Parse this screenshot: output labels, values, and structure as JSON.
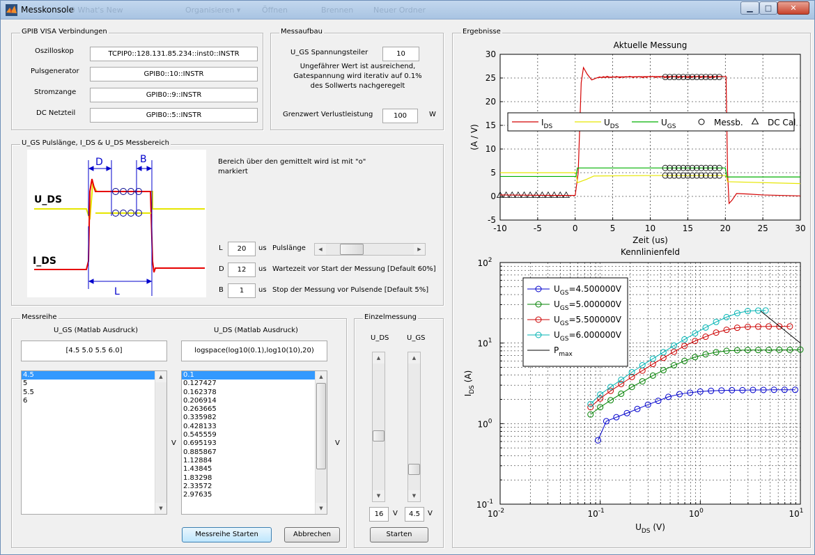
{
  "window": {
    "title": "Messkonsole",
    "bg_items": [
      "Organisieren ▾",
      "Öffnen",
      "Brennen",
      "Neuer Ordner",
      "0 What's New"
    ]
  },
  "gpib": {
    "title": "GPIB VISA Verbindungen",
    "rows": [
      {
        "label": "Oszilloskop",
        "value": "TCPIP0::128.131.85.234::inst0::INSTR"
      },
      {
        "label": "Pulsgenerator",
        "value": "GPIB0::10::INSTR"
      },
      {
        "label": "Stromzange",
        "value": "GPIB0::9::INSTR"
      },
      {
        "label": "DC Netzteil",
        "value": "GPIB0::5::INSTR"
      }
    ]
  },
  "messaufbau": {
    "title": "Messaufbau",
    "divider_label": "U_GS Spannungsteiler",
    "divider_value": "10",
    "note_l1": "Ungefährer Wert ist ausreichend,",
    "note_l2": "Gatespannung wird iterativ auf 0.1%",
    "note_l3": "des Sollwerts nachgeregelt",
    "power_label": "Grenzwert Verlustleistung",
    "power_value": "100",
    "power_unit": "W"
  },
  "pulse": {
    "title": "U_GS Pulslänge, I_DS & U_DS Messbereich",
    "desc_l1": "Bereich über den gemittelt wird ist mit \"o\"",
    "desc_l2": "markiert",
    "diagram": {
      "d": "D",
      "b": "B",
      "l": "L",
      "uds": "U_DS",
      "ids": "I_DS"
    },
    "params": [
      {
        "key": "L",
        "value": "20",
        "unit": "us",
        "text": "Pulslänge",
        "slider": 0.22
      },
      {
        "key": "D",
        "value": "12",
        "unit": "us",
        "text": "Wartezeit vor Start der Messung [Default 60%]"
      },
      {
        "key": "B",
        "value": "1",
        "unit": "us",
        "text": "Stop der Messung vor Pulsende [Default 5%]"
      }
    ]
  },
  "messreihe": {
    "title": "Messreihe",
    "ugs_header": "U_GS (Matlab Ausdruck)",
    "ugs_expr": "[4.5 5.0 5.5 6.0]",
    "uds_header": "U_DS (Matlab Ausdruck)",
    "uds_expr": "logspace(log10(0.1),log10(10),20)",
    "ugs_list": [
      "4.5",
      "5",
      "5.5",
      "6"
    ],
    "uds_list": [
      "0.1",
      "0.127427",
      "0.162378",
      "0.206914",
      "0.263665",
      "0.335982",
      "0.428133",
      "0.545559",
      "0.695193",
      "0.885867",
      "1.12884",
      "1.43845",
      "1.83298",
      "2.33572",
      "2.97635"
    ],
    "unit_v": "V",
    "start": "Messreihe Starten",
    "cancel": "Abbrechen"
  },
  "einzel": {
    "title": "Einzelmessung",
    "uds_label": "U_DS",
    "ugs_label": "U_GS",
    "uds_value": "16",
    "ugs_value": "4.5",
    "unit": "V",
    "start": "Starten",
    "uds_level": 0.42,
    "ugs_level": 0.13
  },
  "ergebnisse": {
    "title": "Ergebnisse"
  },
  "chart_data": [
    {
      "type": "line",
      "title": "Aktuelle Messung",
      "xlabel": "Zeit (us)",
      "ylabel": "(A / V)",
      "xlim": [
        -10,
        30
      ],
      "ylim": [
        -5,
        30
      ],
      "xticks": [
        "-10",
        "-5",
        "0",
        "5",
        "10",
        "15",
        "20",
        "25",
        "30"
      ],
      "yticks": [
        "-5",
        "0",
        "5",
        "10",
        "15",
        "20",
        "25",
        "30"
      ],
      "grid": true,
      "legend_position": "top",
      "legend": [
        {
          "name": "I_DS",
          "sub": "DS",
          "color": "#d40000",
          "marker": "line"
        },
        {
          "name": "U_DS",
          "sub": "DS",
          "color": "#e6e600",
          "marker": "line"
        },
        {
          "name": "U_GS",
          "sub": "GS",
          "color": "#00b000",
          "marker": "line"
        },
        {
          "name": "Messb.",
          "marker": "circle"
        },
        {
          "name": "DC Cal",
          "marker": "triangle"
        }
      ],
      "series": [
        {
          "name": "I_DS",
          "color": "#d40000",
          "points": [
            [
              -10,
              0.3
            ],
            [
              -2,
              0.2
            ],
            [
              0,
              0.2
            ],
            [
              0.4,
              5
            ],
            [
              0.8,
              24
            ],
            [
              1.1,
              27.2
            ],
            [
              1.6,
              25.8
            ],
            [
              2.2,
              24.6
            ],
            [
              3,
              25.1
            ],
            [
              5,
              25.2
            ],
            [
              10,
              25.3
            ],
            [
              15,
              25.3
            ],
            [
              19.6,
              25.3
            ],
            [
              20.1,
              25.3
            ],
            [
              20.3,
              5
            ],
            [
              20.5,
              -1.5
            ],
            [
              20.9,
              -0.8
            ],
            [
              21.5,
              0.6
            ],
            [
              23,
              0.5
            ],
            [
              25,
              0.3
            ],
            [
              30,
              0.1
            ]
          ]
        },
        {
          "name": "U_DS",
          "color": "#e6e600",
          "points": [
            [
              -10,
              5.0
            ],
            [
              0.1,
              5.0
            ],
            [
              0.3,
              2.9
            ],
            [
              1.5,
              3.6
            ],
            [
              2.5,
              4.3
            ],
            [
              10,
              4.4
            ],
            [
              20.1,
              4.4
            ],
            [
              20.3,
              3.1
            ],
            [
              30,
              2.7
            ]
          ]
        },
        {
          "name": "U_GS",
          "color": "#00b000",
          "points": [
            [
              -10,
              4.2
            ],
            [
              0.1,
              4.2
            ],
            [
              0.3,
              6.0
            ],
            [
              20.0,
              6.0
            ],
            [
              20.2,
              4.1
            ],
            [
              30,
              4.1
            ]
          ]
        }
      ],
      "markers": {
        "circles_ids": {
          "x": [
            12,
            12.6,
            13.2,
            13.8,
            14.4,
            15,
            15.6,
            16.2,
            16.8,
            17.4,
            18,
            18.6,
            19.2
          ],
          "y": 25.2
        },
        "circles_uds": {
          "x": [
            12,
            12.6,
            13.2,
            13.8,
            14.4,
            15,
            15.6,
            16.2,
            16.8,
            17.4,
            18,
            18.6,
            19.2
          ],
          "y": 4.4
        },
        "circles_ugs": {
          "x": [
            12,
            12.6,
            13.2,
            13.8,
            14.4,
            15,
            15.6,
            16.2,
            16.8,
            17.4,
            18,
            18.6,
            19.2
          ],
          "y": 6.0
        },
        "triangles": {
          "x": [
            -10,
            -9.2,
            -8.4,
            -7.6,
            -6.8,
            -6.0,
            -5.2,
            -4.4,
            -3.6,
            -2.8,
            -2.0,
            -1.2
          ],
          "y": 0.2
        }
      }
    },
    {
      "type": "line",
      "title": "Kennlinienfeld",
      "xlabel": "U_DS (V)",
      "ylabel": "I_DS (A)",
      "xscale": "log",
      "yscale": "log",
      "xlim": [
        0.01,
        10
      ],
      "ylim": [
        0.1,
        100
      ],
      "grid": true,
      "legend_position": "top-left",
      "xticks": [
        "10",
        "10",
        "10",
        "10"
      ],
      "xtick_exp": [
        "-2",
        "-1",
        "0",
        "1"
      ],
      "yticks": [
        "10",
        "10",
        "10",
        "10"
      ],
      "ytick_exp": [
        "-1",
        "0",
        "1",
        "2"
      ],
      "legend": [
        {
          "name": "U_GS=4.500000V",
          "color": "#0000cc"
        },
        {
          "name": "U_GS=5.000000V",
          "color": "#008000"
        },
        {
          "name": "U_GS=5.500000V",
          "color": "#cc0000"
        },
        {
          "name": "U_GS=6.000000V",
          "color": "#00b3b3"
        },
        {
          "name": "P_max",
          "color": "#000000"
        }
      ],
      "series": [
        {
          "name": "U_GS=4.500000V",
          "color": "#0000cc",
          "x": [
            0.095,
            0.115,
            0.145,
            0.185,
            0.235,
            0.3,
            0.38,
            0.48,
            0.62,
            0.79,
            1.0,
            1.28,
            1.63,
            2.07,
            2.64,
            3.36,
            4.28,
            5.45,
            6.95,
            8.86
          ],
          "y": [
            0.62,
            1.07,
            1.2,
            1.35,
            1.52,
            1.72,
            1.92,
            2.15,
            2.32,
            2.42,
            2.5,
            2.55,
            2.58,
            2.6,
            2.6,
            2.62,
            2.62,
            2.63,
            2.63,
            2.63
          ]
        },
        {
          "name": "U_GS=5.000000V",
          "color": "#008000",
          "x": [
            0.08,
            0.1,
            0.127,
            0.162,
            0.207,
            0.264,
            0.336,
            0.428,
            0.546,
            0.695,
            0.886,
            1.13,
            1.44,
            1.83,
            2.34,
            2.98,
            3.79,
            4.83,
            6.16,
            7.85,
            10
          ],
          "y": [
            1.3,
            1.6,
            1.95,
            2.35,
            2.85,
            3.35,
            3.95,
            4.6,
            5.3,
            6.0,
            6.7,
            7.25,
            7.7,
            8.0,
            8.15,
            8.2,
            8.2,
            8.2,
            8.25,
            8.25,
            8.3
          ]
        },
        {
          "name": "U_GS=5.500000V",
          "color": "#cc0000",
          "x": [
            0.08,
            0.1,
            0.127,
            0.162,
            0.207,
            0.264,
            0.336,
            0.428,
            0.546,
            0.695,
            0.886,
            1.13,
            1.44,
            1.83,
            2.34,
            2.98,
            3.79,
            4.83,
            6.16,
            7.85
          ],
          "y": [
            1.6,
            2.05,
            2.55,
            3.1,
            3.8,
            4.55,
            5.5,
            6.55,
            7.8,
            9.2,
            10.6,
            12.0,
            13.5,
            14.6,
            15.5,
            15.9,
            16.0,
            16.1,
            16.1,
            16.1
          ]
        },
        {
          "name": "U_GS=6.000000V",
          "color": "#00b3b3",
          "x": [
            0.08,
            0.1,
            0.127,
            0.162,
            0.207,
            0.264,
            0.336,
            0.428,
            0.546,
            0.695,
            0.886,
            1.13,
            1.44,
            1.83,
            2.34,
            2.98,
            3.79,
            4.5
          ],
          "y": [
            1.75,
            2.3,
            2.85,
            3.5,
            4.35,
            5.3,
            6.4,
            7.7,
            9.3,
            11.1,
            13.2,
            15.6,
            18.3,
            21.0,
            23.5,
            25.0,
            25.3,
            25.4
          ]
        },
        {
          "name": "P_max",
          "color": "#000000",
          "x": [
            4,
            10
          ],
          "y": [
            25,
            10
          ]
        }
      ]
    }
  ]
}
